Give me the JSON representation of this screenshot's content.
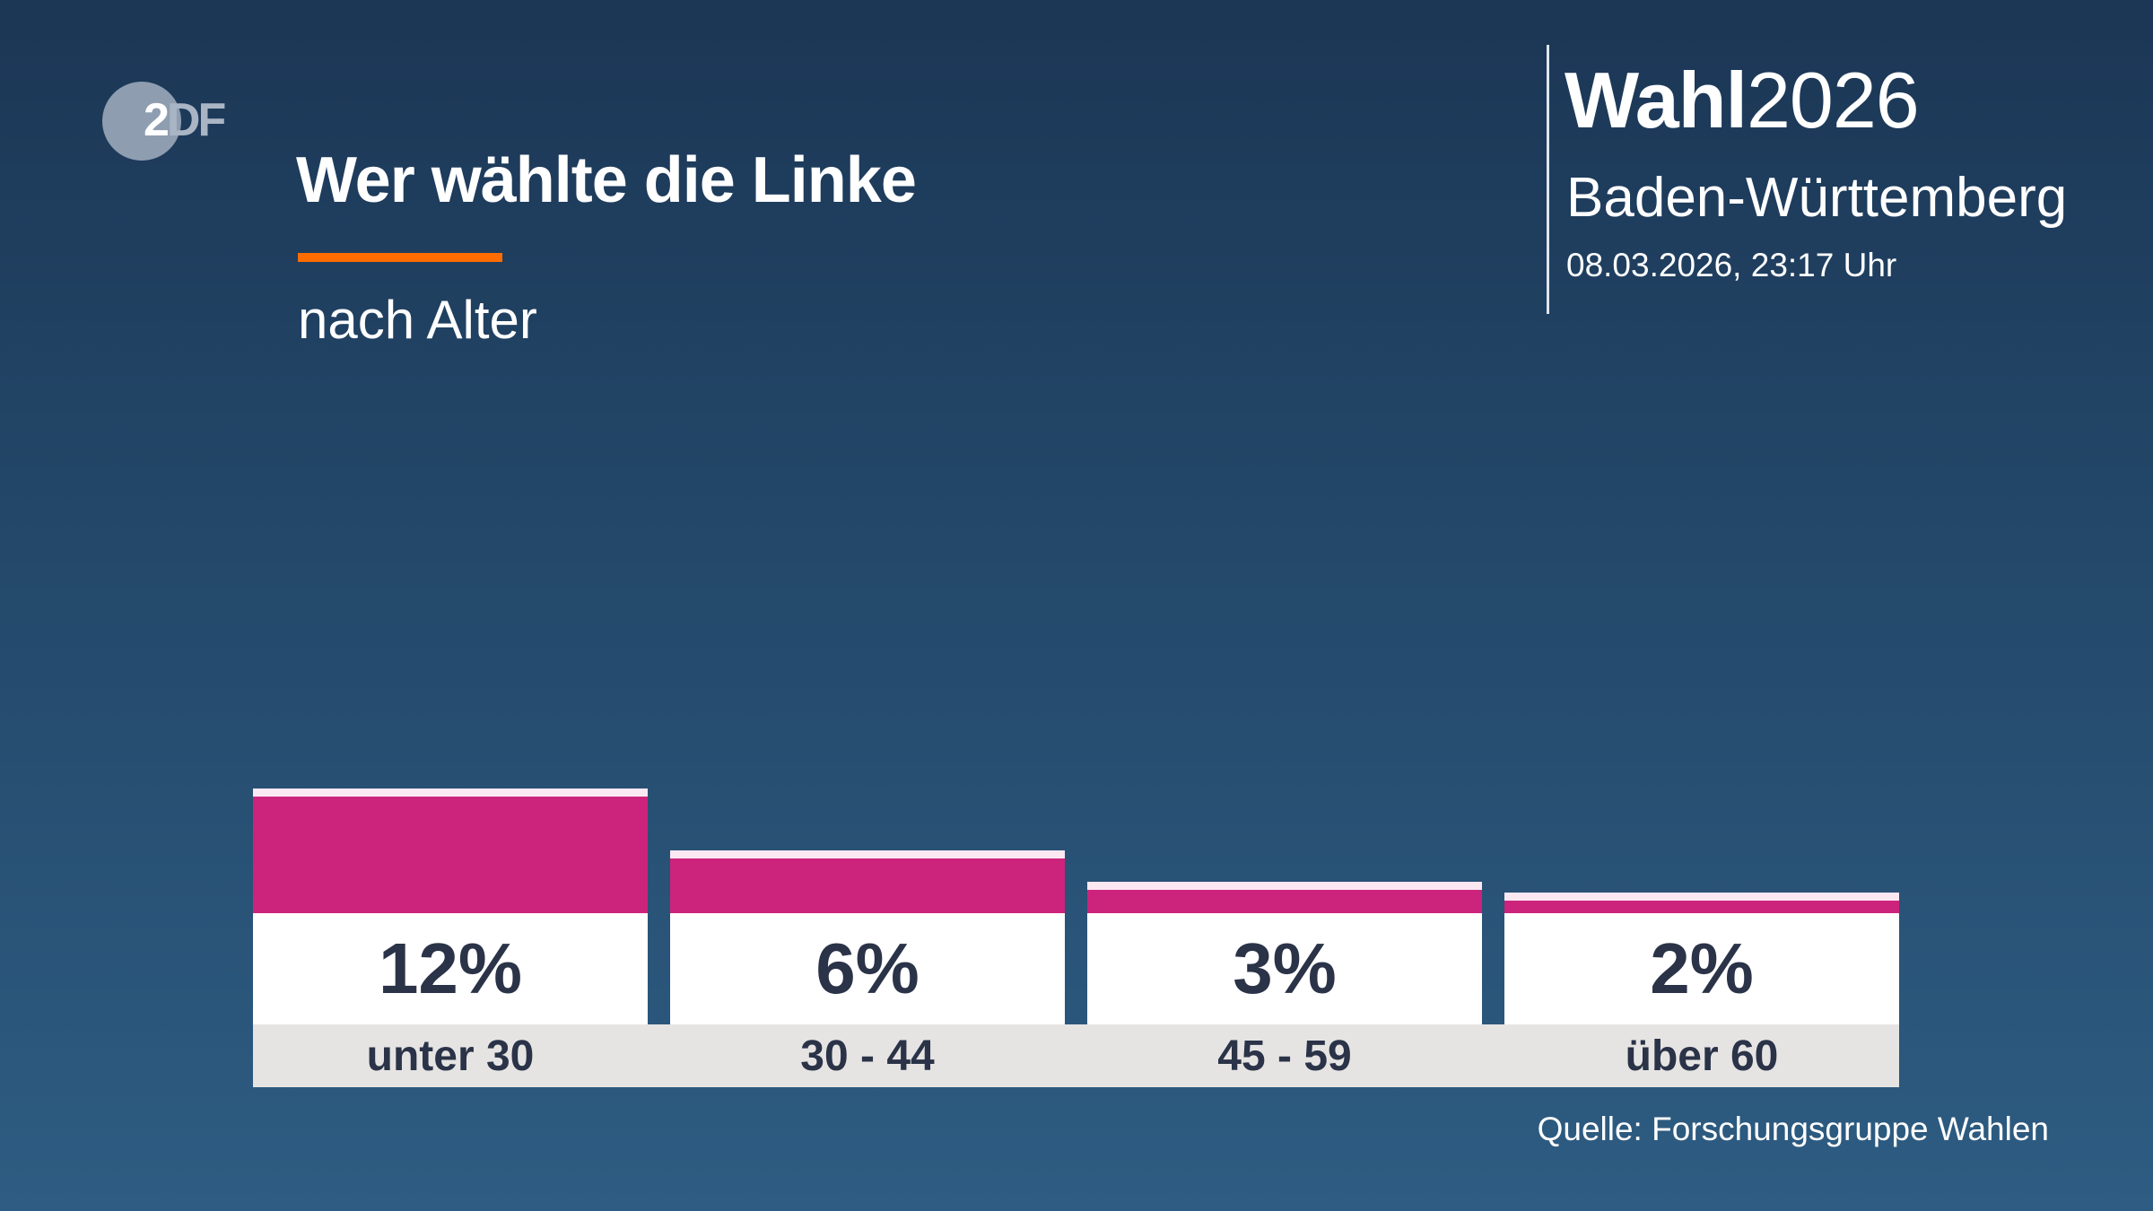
{
  "brand": {
    "logo": "ZDF",
    "logo_main": "2",
    "logo_rest": "DF"
  },
  "header": {
    "title": "Wer wählte die Linke",
    "subtitle": "nach Alter",
    "election_bold": "Wahl",
    "election_year": "2026",
    "region": "Baden-Württemberg",
    "timestamp": "08.03.2026, 23:17 Uhr"
  },
  "footer": {
    "source": "Quelle: Forschungsgruppe Wahlen"
  },
  "colors": {
    "accent": "#ff6d00",
    "bar": "#cc247c",
    "bar_cap": "#fbe8f2",
    "label_band": "#e6e4e3",
    "text_dark": "#2a3347"
  },
  "chart_data": {
    "type": "bar",
    "title": "Wer wählte die Linke",
    "subtitle": "nach Alter",
    "categories": [
      "unter 30",
      "30 - 44",
      "45 - 59",
      "über 60"
    ],
    "values": [
      12,
      6,
      3,
      2
    ],
    "value_labels": [
      "12%",
      "6%",
      "3%",
      "2%"
    ],
    "unit": "%",
    "grid": false
  }
}
